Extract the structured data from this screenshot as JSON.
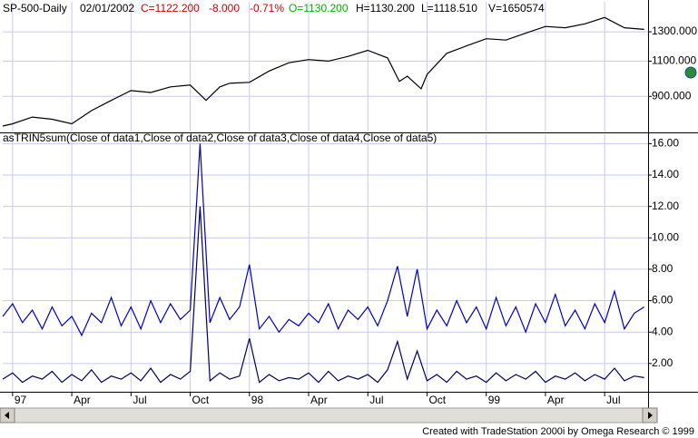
{
  "header": {
    "symbol": "SP-500-Daily",
    "date": "02/01/2002",
    "close": "C=1122.200",
    "change": "-8.000",
    "change_pct": "-0.71%",
    "open": "O=1130.200",
    "high": "H=1130.200",
    "low": "L=1118.510",
    "volume": "V=1650574"
  },
  "footer": "Created with TradeStation 2000i by Omega Research © 1999",
  "chart_data": [
    {
      "type": "line",
      "color": "#000000",
      "log_scale": true,
      "x": [
        -0.5,
        0,
        1,
        2,
        3,
        4,
        5,
        6,
        7,
        8,
        9,
        9.8,
        10.5,
        11,
        12,
        13,
        14,
        15,
        16,
        17,
        18,
        19,
        19.6,
        20,
        20.7,
        21,
        22,
        23,
        24,
        25,
        26,
        27,
        28,
        29,
        30,
        31,
        32
      ],
      "values": [
        760,
        770,
        800,
        790,
        770,
        830,
        880,
        930,
        920,
        950,
        960,
        880,
        950,
        970,
        975,
        1040,
        1090,
        1110,
        1100,
        1130,
        1170,
        1120,
        980,
        1010,
        940,
        1020,
        1150,
        1200,
        1250,
        1240,
        1290,
        1340,
        1330,
        1360,
        1410,
        1330,
        1318
      ],
      "xlim": [
        -0.5,
        32.2
      ],
      "ylim": [
        737,
        1542
      ],
      "yticks": [
        {
          "value": 900,
          "label": "900.000"
        },
        {
          "value": 1100,
          "label": "1100.000"
        },
        {
          "value": 1300,
          "label": "1300.000"
        }
      ],
      "grid": true
    },
    {
      "type": "line",
      "title": "asTRIN5sum(Close of data1,Close of data2,Close of data3,Close of data4,Close of data5)",
      "x": [
        -0.5,
        0,
        0.5,
        1,
        1.5,
        2,
        2.5,
        3,
        3.5,
        4,
        4.5,
        5,
        5.5,
        6,
        6.5,
        7,
        7.5,
        8,
        8.5,
        9,
        9.5,
        10,
        10.5,
        11,
        11.5,
        12,
        12.5,
        13,
        13.5,
        14,
        14.5,
        15,
        15.5,
        16,
        16.5,
        17,
        17.5,
        18,
        18.5,
        19,
        19.5,
        20,
        20.5,
        21,
        21.5,
        22,
        22.5,
        23,
        23.5,
        24,
        24.5,
        25,
        25.5,
        26,
        26.5,
        27,
        27.5,
        28,
        28.5,
        29,
        29.5,
        30,
        30.5,
        31,
        31.5,
        32
      ],
      "series": [
        {
          "color": "#0000c0",
          "values": [
            5.0,
            5.8,
            4.6,
            5.4,
            4.2,
            5.6,
            4.4,
            5.0,
            3.8,
            5.2,
            4.6,
            6.2,
            4.4,
            5.6,
            4.2,
            6.0,
            4.6,
            5.8,
            4.8,
            5.4,
            16.0,
            4.6,
            6.2,
            4.8,
            5.6,
            8.3,
            4.2,
            5.0,
            4.0,
            4.8,
            4.4,
            5.2,
            4.6,
            5.8,
            4.2,
            5.4,
            4.8,
            5.6,
            4.4,
            6.0,
            8.2,
            5.0,
            8.0,
            4.2,
            5.4,
            4.4,
            6.0,
            4.6,
            5.6,
            4.2,
            6.2,
            4.4,
            5.6,
            4.0,
            5.8,
            4.6,
            6.4,
            4.4,
            5.4,
            4.2,
            5.8,
            4.6,
            6.6,
            4.2,
            5.2,
            5.6
          ]
        },
        {
          "color": "#000060",
          "values": [
            1.0,
            1.4,
            0.8,
            1.2,
            1.0,
            1.5,
            0.8,
            1.3,
            0.9,
            1.6,
            0.8,
            1.2,
            1.0,
            1.4,
            0.9,
            1.7,
            0.8,
            1.3,
            1.0,
            1.5,
            12.0,
            0.9,
            1.4,
            1.0,
            1.2,
            3.6,
            0.8,
            1.3,
            0.9,
            1.1,
            1.0,
            1.4,
            0.8,
            1.5,
            0.9,
            1.2,
            1.0,
            1.3,
            0.8,
            1.6,
            3.4,
            1.0,
            2.8,
            0.9,
            1.3,
            0.8,
            1.5,
            1.0,
            1.2,
            0.8,
            1.4,
            0.9,
            1.3,
            1.0,
            1.5,
            0.8,
            1.2,
            1.0,
            1.4,
            0.9,
            1.3,
            1.0,
            1.7,
            0.9,
            1.2,
            1.1
          ]
        }
      ],
      "xlim": [
        -0.5,
        32.2
      ],
      "ylim": [
        0.2,
        16.6
      ],
      "xticks": [
        {
          "value": 0,
          "label": "97"
        },
        {
          "value": 3,
          "label": "Apr"
        },
        {
          "value": 6,
          "label": "Jul"
        },
        {
          "value": 9,
          "label": "Oct"
        },
        {
          "value": 12,
          "label": "98"
        },
        {
          "value": 15,
          "label": "Apr"
        },
        {
          "value": 18,
          "label": "Jul"
        },
        {
          "value": 21,
          "label": "Oct"
        },
        {
          "value": 24,
          "label": "99"
        },
        {
          "value": 27,
          "label": "Apr"
        },
        {
          "value": 30,
          "label": "Jul"
        }
      ],
      "yticks": [
        {
          "value": 2,
          "label": "2.00"
        },
        {
          "value": 4,
          "label": "4.00"
        },
        {
          "value": 6,
          "label": "6.00"
        },
        {
          "value": 8,
          "label": "8.00"
        },
        {
          "value": 10,
          "label": "10.00"
        },
        {
          "value": 12,
          "label": "12.00"
        },
        {
          "value": 14,
          "label": "14.00"
        },
        {
          "value": 16,
          "label": "16.00"
        }
      ],
      "grid": true
    }
  ]
}
